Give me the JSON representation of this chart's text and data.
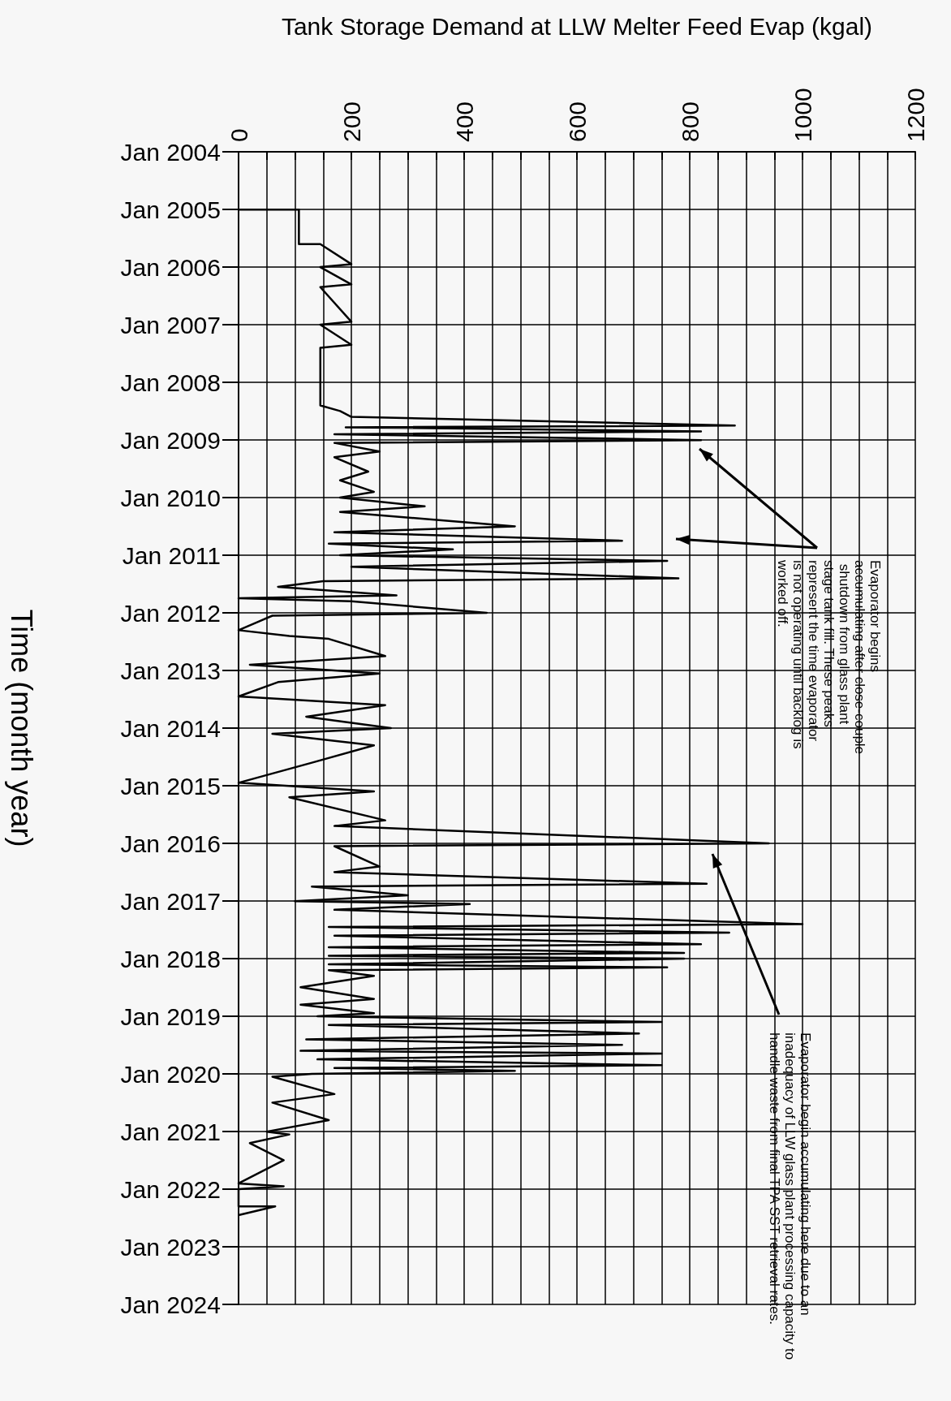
{
  "chart_data": {
    "type": "line",
    "xlabel": "Tank Storage Demand at LLW Melter Feed Evap (kgal)",
    "ylabel": "Time (month year)",
    "xlim": [
      0,
      1200
    ],
    "xticks": [
      0,
      200,
      400,
      600,
      800,
      1000,
      1200
    ],
    "ylim": [
      "2024-01",
      "2004-01"
    ],
    "yticks": [
      {
        "value": "2004-01",
        "label": "Jan 2004"
      },
      {
        "value": "2005-01",
        "label": "Jan 2005"
      },
      {
        "value": "2006-01",
        "label": "Jan 2006"
      },
      {
        "value": "2007-01",
        "label": "Jan 2007"
      },
      {
        "value": "2008-01",
        "label": "Jan 2008"
      },
      {
        "value": "2009-01",
        "label": "Jan 2009"
      },
      {
        "value": "2010-01",
        "label": "Jan 2010"
      },
      {
        "value": "2011-01",
        "label": "Jan 2011"
      },
      {
        "value": "2012-01",
        "label": "Jan 2012"
      },
      {
        "value": "2013-01",
        "label": "Jan 2013"
      },
      {
        "value": "2014-01",
        "label": "Jan 2014"
      },
      {
        "value": "2015-01",
        "label": "Jan 2015"
      },
      {
        "value": "2016-01",
        "label": "Jan 2016"
      },
      {
        "value": "2017-01",
        "label": "Jan 2017"
      },
      {
        "value": "2018-01",
        "label": "Jan 2018"
      },
      {
        "value": "2019-01",
        "label": "Jan 2019"
      },
      {
        "value": "2020-01",
        "label": "Jan 2020"
      },
      {
        "value": "2021-01",
        "label": "Jan 2021"
      },
      {
        "value": "2022-01",
        "label": "Jan 2022"
      },
      {
        "value": "2023-01",
        "label": "Jan 2023"
      },
      {
        "value": "2024-01",
        "label": "Jan 2024"
      }
    ],
    "grid": true,
    "marker": "none",
    "line_style": "solid",
    "orientation": "horizontal",
    "series": [
      {
        "color": "#000000",
        "values": [
          0,
          107,
          107,
          145,
          200,
          145,
          200,
          145,
          200,
          145,
          200,
          145,
          145,
          180,
          200,
          880,
          190,
          820,
          170,
          820,
          170,
          250,
          170,
          230,
          180,
          240,
          180,
          330,
          180,
          490,
          170,
          680,
          160,
          380,
          180,
          760,
          200,
          780,
          150,
          70,
          280,
          0,
          200,
          440,
          60,
          0,
          90,
          160,
          260,
          20,
          250,
          70,
          0,
          260,
          120,
          270,
          60,
          240,
          130,
          0,
          240,
          90,
          260,
          170,
          940,
          170,
          250,
          170,
          830,
          130,
          300,
          100,
          410,
          170,
          1000,
          160,
          870,
          170,
          820,
          160,
          790,
          160,
          790,
          160,
          760,
          160,
          240,
          110,
          240,
          110,
          240,
          140,
          750,
          160,
          710,
          120,
          680,
          110,
          750,
          140,
          750,
          170,
          490,
          130,
          60,
          170,
          60,
          160,
          50,
          90,
          20,
          80,
          0,
          80,
          0,
          0,
          65,
          0
        ],
        "x": [
          "2005-01-01",
          "2005-01-01",
          "2005-08-08",
          "2005-08-08",
          "2005-12-13",
          "2006-01-01",
          "2006-04-20",
          "2006-05-08",
          "2006-12-13",
          "2007-01-01",
          "2007-05-08",
          "2007-05-27",
          "2008-05-27",
          "2008-07-01",
          "2008-08-07",
          "2008-10-01",
          "2008-10-12",
          "2008-11-07",
          "2008-11-25",
          "2009-01-01",
          "2009-01-19",
          "2009-03-15",
          "2009-04-20",
          "2009-07-20",
          "2009-09-13",
          "2009-11-25",
          "2010-01-01",
          "2010-02-25",
          "2010-04-02",
          "2010-07-02",
          "2010-08-08",
          "2010-10-01",
          "2010-10-20",
          "2010-11-25",
          "2011-01-01",
          "2011-02-06",
          "2011-03-15",
          "2011-05-27",
          "2011-06-14",
          "2011-07-20",
          "2011-09-13",
          "2011-10-01",
          "2011-10-20",
          "2012-01-01",
          "2012-01-19",
          "2012-04-20",
          "2012-05-27",
          "2012-06-14",
          "2012-10-01",
          "2012-11-25",
          "2013-01-19",
          "2013-03-15",
          "2013-06-14",
          "2013-08-08",
          "2013-10-20",
          "2014-01-01",
          "2014-02-06",
          "2014-04-20",
          "2014-08-08",
          "2014-12-13",
          "2015-02-06",
          "2015-03-15",
          "2015-08-08",
          "2015-09-13",
          "2016-01-01",
          "2016-01-19",
          "2016-05-27",
          "2016-07-01",
          "2016-09-13",
          "2016-10-01",
          "2016-11-25",
          "2017-01-01",
          "2017-01-19",
          "2017-02-25",
          "2017-05-27",
          "2017-06-14",
          "2017-07-20",
          "2017-08-08",
          "2017-10-01",
          "2017-10-20",
          "2017-11-25",
          "2017-12-13",
          "2018-01-01",
          "2018-02-06",
          "2018-02-25",
          "2018-03-15",
          "2018-04-20",
          "2018-07-01",
          "2018-09-13",
          "2018-10-20",
          "2018-12-13",
          "2019-01-01",
          "2019-02-06",
          "2019-02-25",
          "2019-04-20",
          "2019-05-27",
          "2019-07-01",
          "2019-08-08",
          "2019-08-25",
          "2019-10-01",
          "2019-11-07",
          "2019-11-25",
          "2019-12-13",
          "2020-01-01",
          "2020-01-19",
          "2020-05-08",
          "2020-07-01",
          "2020-10-20",
          "2021-01-01",
          "2021-01-19",
          "2021-03-15",
          "2021-07-01",
          "2021-11-25",
          "2021-12-13",
          "2022-01-01",
          "2022-04-20",
          "2022-04-20",
          "2022-06-14"
        ]
      }
    ],
    "annotations": [
      "Evaporator begins accumulating after close-couple shutdown from glass plant stage tank fill. These peaks represent the time evaporator is not operating until backlog is worked off.",
      "Evaporator begin accumulating here due to an inadequacy of LLW glass plant processing capacity to handle waste from final TPA SST retrieval rates."
    ]
  }
}
